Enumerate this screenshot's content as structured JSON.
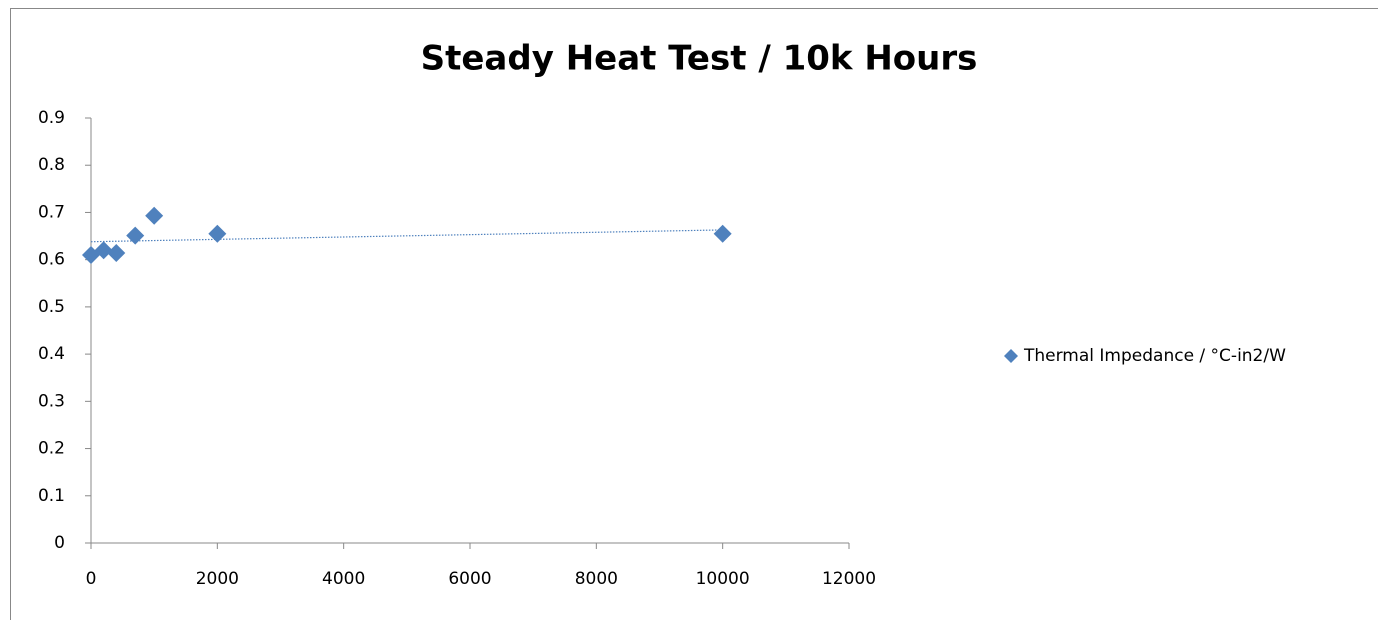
{
  "chart_data": {
    "type": "scatter",
    "title": "Steady Heat Test  / 10k Hours",
    "series": [
      {
        "name": "Thermal Impedance / °C-in2/W",
        "color": "#4f81bd",
        "x": [
          0,
          200,
          400,
          700,
          1000,
          2000,
          10000
        ],
        "values": [
          0.61,
          0.62,
          0.614,
          0.651,
          0.693,
          0.655,
          0.655
        ]
      }
    ],
    "trendline": {
      "x": [
        0,
        10000
      ],
      "values": [
        0.638,
        0.663
      ]
    },
    "xlim": [
      0,
      12000
    ],
    "xticks": [
      0,
      2000,
      4000,
      6000,
      8000,
      10000,
      12000
    ],
    "ylim": [
      0,
      0.9
    ],
    "yticks": [
      0,
      0.1,
      0.2,
      0.3,
      0.4,
      0.5,
      0.6,
      0.7,
      0.8,
      0.9
    ],
    "legend": "right"
  }
}
